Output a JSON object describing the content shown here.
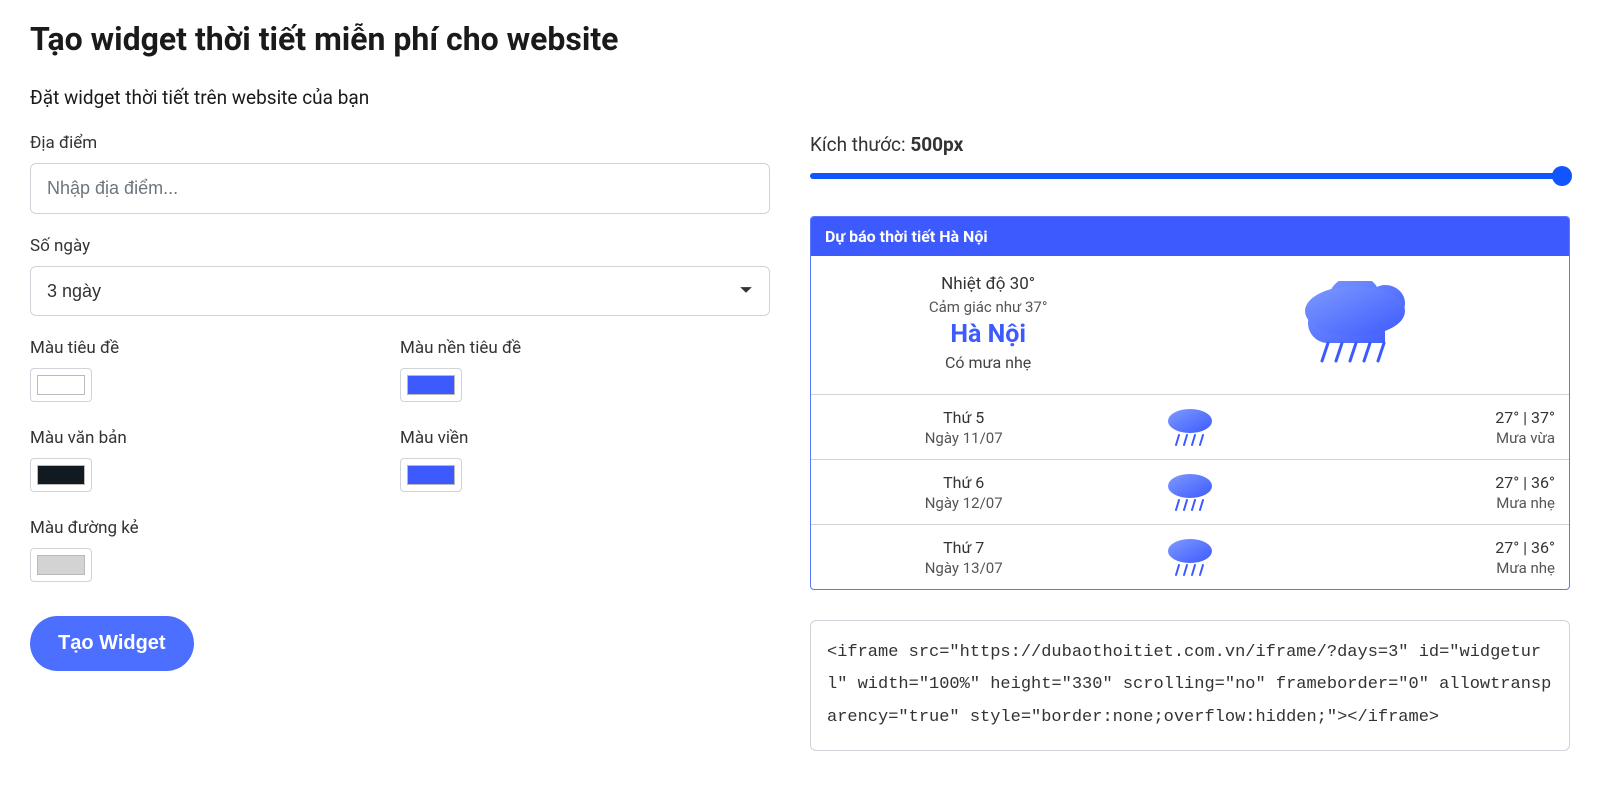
{
  "page": {
    "title": "Tạo widget thời tiết miễn phí cho website",
    "subtitle": "Đặt widget thời tiết trên website của bạn"
  },
  "form": {
    "location_label": "Địa điểm",
    "location_placeholder": "Nhập địa điểm...",
    "days_label": "Số ngày",
    "days_value": "3 ngày",
    "title_color_label": "Màu tiêu đề",
    "title_bg_label": "Màu nền tiêu đề",
    "text_color_label": "Màu văn bản",
    "border_color_label": "Màu viền",
    "line_color_label": "Màu đường kẻ",
    "title_color": "#ffffff",
    "title_bg": "#3d5afe",
    "text_color": "#121a21",
    "border_color": "#3d5afe",
    "line_color": "#d3d3d3",
    "submit_label": "Tạo Widget"
  },
  "size": {
    "label": "Kích thước: ",
    "value": "500px",
    "slider_percent": 100,
    "track_color": "#1155ff",
    "thumb_color": "#1155ff"
  },
  "widget": {
    "header": "Dự báo thời tiết Hà Nội",
    "header_bg": "#3d5afe",
    "header_text_color": "#ffffff",
    "border_color": "#5a78ff",
    "current": {
      "temp_line": "Nhiệt độ 30°",
      "feels_line": "Cảm giác như 37°",
      "city": "Hà Nội",
      "city_color": "#3d5afe",
      "condition": "Có mưa nhẹ",
      "icon": "rain"
    },
    "forecast": [
      {
        "dow": "Thứ 5",
        "date": "Ngày 11/07",
        "temps": "27° | 37°",
        "condition": "Mưa vừa",
        "icon": "rain"
      },
      {
        "dow": "Thứ 6",
        "date": "Ngày 12/07",
        "temps": "27° | 36°",
        "condition": "Mưa nhẹ",
        "icon": "rain"
      },
      {
        "dow": "Thứ 7",
        "date": "Ngày 13/07",
        "temps": "27° | 36°",
        "condition": "Mưa nhẹ",
        "icon": "rain"
      }
    ]
  },
  "code": {
    "text": "<iframe src=\"https://dubaothoitiet.com.vn/iframe/?days=3\" id=\"widgeturl\" width=\"100%\" height=\"330\" scrolling=\"no\" frameborder=\"0\" allowtransparency=\"true\" style=\"border:none;overflow:hidden;\"></iframe>"
  },
  "icons": {
    "rain_cloud_fill_start": "#7e9aff",
    "rain_cloud_fill_end": "#3d5afe",
    "rain_line_color": "#3d5afe"
  }
}
